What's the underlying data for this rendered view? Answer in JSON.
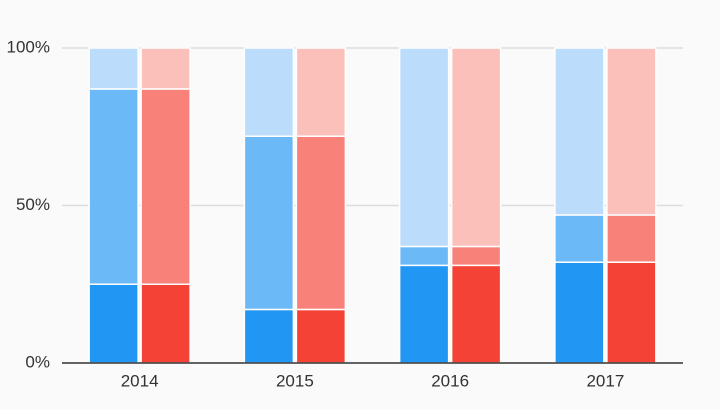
{
  "chart_data": {
    "type": "bar",
    "stacked": true,
    "categories": [
      "2014",
      "2015",
      "2016",
      "2017"
    ],
    "series": [
      {
        "stack": 0,
        "color": "#2196f3",
        "values": [
          25,
          17,
          31,
          32
        ]
      },
      {
        "stack": 0,
        "color": "#6cb9f8",
        "values": [
          62,
          55,
          6,
          15
        ]
      },
      {
        "stack": 0,
        "color": "#bbdcfb",
        "values": [
          13,
          28,
          63,
          53
        ]
      },
      {
        "stack": 1,
        "color": "#f44336",
        "values": [
          25,
          17,
          31,
          32
        ]
      },
      {
        "stack": 1,
        "color": "#f8827a",
        "values": [
          62,
          55,
          6,
          15
        ]
      },
      {
        "stack": 1,
        "color": "#fcc0bb",
        "values": [
          13,
          28,
          63,
          53
        ]
      }
    ],
    "ylim": [
      0,
      100
    ],
    "yticks": [
      {
        "value": 0,
        "label": "0%"
      },
      {
        "value": 50,
        "label": "50%"
      },
      {
        "value": 100,
        "label": "100%"
      }
    ],
    "grid": true
  }
}
